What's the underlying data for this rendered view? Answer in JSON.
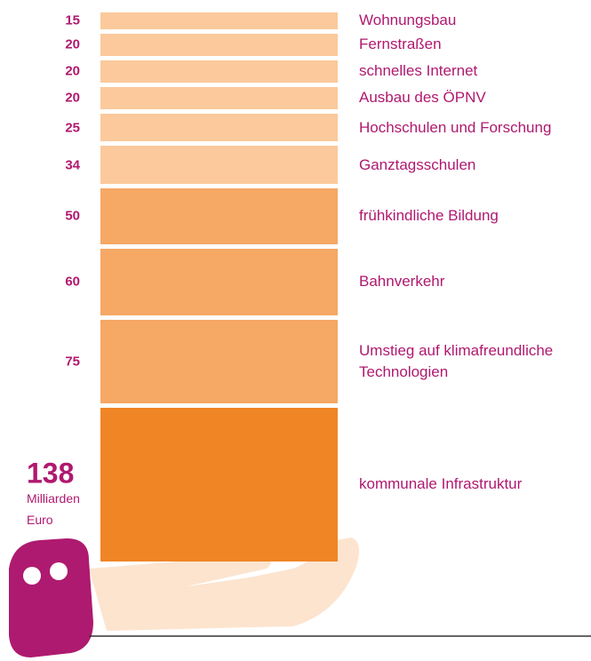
{
  "chart_data": {
    "type": "stacked-column",
    "categories": [
      "Wohnungsbau",
      "Fernstraßen",
      "schnelles Internet",
      "Ausbau des ÖPNV",
      "Hochschulen und Forschung",
      "Ganztagsschulen",
      "frühkindliche Bildung",
      "Bahnverkehr",
      "Umstieg auf klimafreundliche Technologien",
      "kommunale Infrastruktur"
    ],
    "values": [
      15,
      20,
      20,
      20,
      25,
      34,
      50,
      60,
      75,
      138
    ],
    "colors": [
      "#fbc99b",
      "#fbc99b",
      "#fbc99b",
      "#fbc99b",
      "#fbc99b",
      "#fbc99b",
      "#f6a865",
      "#f6a865",
      "#f6a865",
      "#f08526"
    ],
    "unit_lines": [
      "Milliarden",
      "Euro"
    ]
  }
}
